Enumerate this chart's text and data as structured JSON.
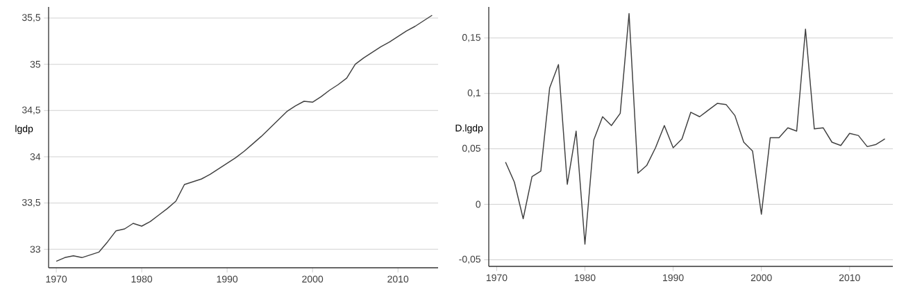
{
  "chart_data": [
    {
      "type": "line",
      "ylabel": "lgdp",
      "x": [
        1970,
        1971,
        1972,
        1973,
        1974,
        1975,
        1976,
        1977,
        1978,
        1979,
        1980,
        1981,
        1982,
        1983,
        1984,
        1985,
        1986,
        1987,
        1988,
        1989,
        1990,
        1991,
        1992,
        1993,
        1994,
        1995,
        1996,
        1997,
        1998,
        1999,
        2000,
        2001,
        2002,
        2003,
        2004,
        2005,
        2006,
        2007,
        2008,
        2009,
        2010,
        2011,
        2012,
        2013,
        2014
      ],
      "series": [
        {
          "color": "#404040",
          "values": [
            32.87,
            32.91,
            32.93,
            32.91,
            32.94,
            32.97,
            33.08,
            33.2,
            33.22,
            33.28,
            33.25,
            33.3,
            33.37,
            33.44,
            33.52,
            33.7,
            33.73,
            33.76,
            33.81,
            33.87,
            33.93,
            33.99,
            34.06,
            34.14,
            34.22,
            34.31,
            34.4,
            34.49,
            34.55,
            34.6,
            34.59,
            34.65,
            34.72,
            34.78,
            34.85,
            35.0,
            35.07,
            35.13,
            35.19,
            35.24,
            35.3,
            35.36,
            35.41,
            35.47,
            35.53
          ]
        }
      ],
      "xlim": [
        1969.1,
        2014.7
      ],
      "ylim": [
        32.8,
        35.62
      ],
      "xticks": [
        1970,
        1980,
        1990,
        2000,
        2010
      ],
      "yticks": [
        33,
        {
          "value": 33.5,
          "label": "33,5"
        },
        34,
        {
          "value": 34.5,
          "label": "34,5"
        },
        35,
        {
          "value": 35.5,
          "label": "35,5"
        }
      ],
      "grid": "y",
      "marker": "none",
      "line_style": "solid"
    },
    {
      "type": "line",
      "ylabel": "D.lgdp",
      "x": [
        1971,
        1972,
        1973,
        1974,
        1975,
        1976,
        1977,
        1978,
        1979,
        1980,
        1981,
        1982,
        1983,
        1984,
        1985,
        1986,
        1987,
        1988,
        1989,
        1990,
        1991,
        1992,
        1993,
        1994,
        1995,
        1996,
        1997,
        1998,
        1999,
        2000,
        2001,
        2002,
        2003,
        2004,
        2005,
        2006,
        2007,
        2008,
        2009,
        2010,
        2011,
        2012,
        2013,
        2014
      ],
      "series": [
        {
          "color": "#404040",
          "values": [
            0.038,
            0.02,
            -0.013,
            0.025,
            0.03,
            0.105,
            0.126,
            0.018,
            0.066,
            -0.036,
            0.058,
            0.079,
            0.071,
            0.082,
            0.172,
            0.028,
            0.035,
            0.051,
            0.071,
            0.051,
            0.059,
            0.083,
            0.079,
            0.085,
            0.091,
            0.09,
            0.08,
            0.056,
            0.048,
            -0.009,
            0.06,
            0.06,
            0.069,
            0.066,
            0.158,
            0.068,
            0.069,
            0.056,
            0.053,
            0.064,
            0.062,
            0.052,
            0.054,
            0.059
          ]
        }
      ],
      "xlim": [
        1969.1,
        2014.9
      ],
      "ylim": [
        -0.056,
        0.178
      ],
      "xticks": [
        1970,
        1980,
        1990,
        2000,
        2010
      ],
      "yticks": [
        {
          "value": -0.05,
          "label": "-0,05"
        },
        0,
        {
          "value": 0.05,
          "label": "0,05"
        },
        {
          "value": 0.1,
          "label": "0,1"
        },
        {
          "value": 0.15,
          "label": "0,15"
        }
      ],
      "grid": "y",
      "marker": "none",
      "line_style": "solid"
    }
  ]
}
